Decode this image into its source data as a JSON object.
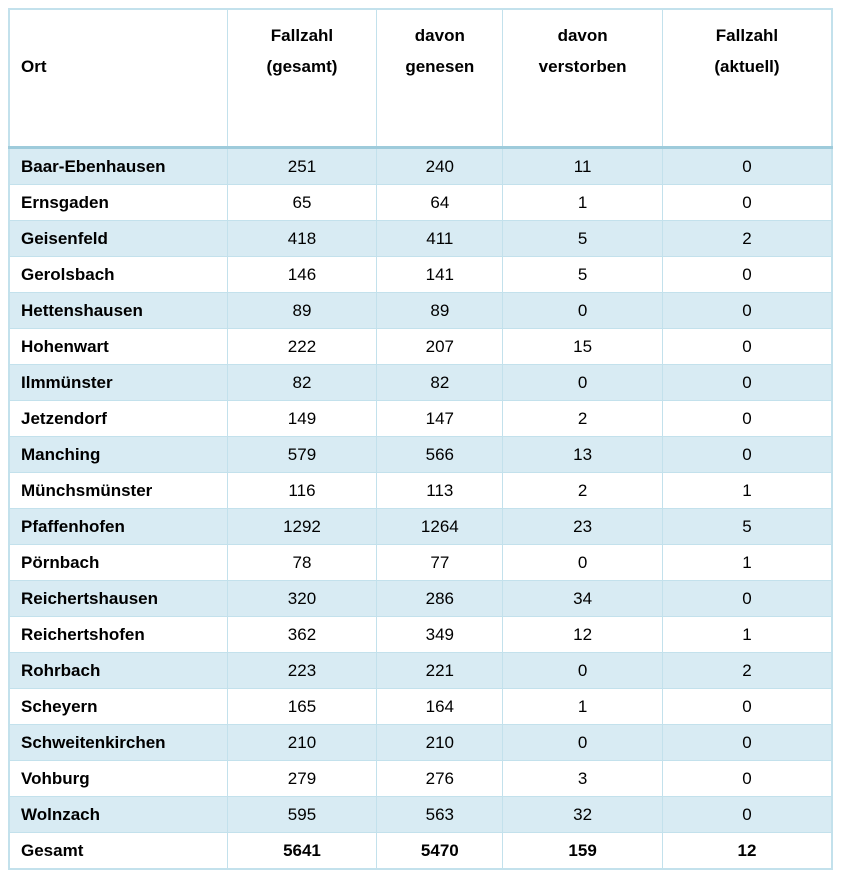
{
  "table": {
    "columns": [
      {
        "id": "ort",
        "label_lines": [
          "Ort",
          ""
        ]
      },
      {
        "id": "gesamt",
        "label_lines": [
          "Fallzahl",
          "(gesamt)"
        ]
      },
      {
        "id": "genesen",
        "label_lines": [
          "davon",
          "genesen"
        ]
      },
      {
        "id": "verstorben",
        "label_lines": [
          "davon",
          "verstorben"
        ]
      },
      {
        "id": "aktuell",
        "label_lines": [
          "Fallzahl",
          "(aktuell)"
        ]
      }
    ],
    "rows": [
      {
        "ort": "Baar-Ebenhausen",
        "gesamt": 251,
        "genesen": 240,
        "verstorben": 11,
        "aktuell": 0
      },
      {
        "ort": "Ernsgaden",
        "gesamt": 65,
        "genesen": 64,
        "verstorben": 1,
        "aktuell": 0
      },
      {
        "ort": "Geisenfeld",
        "gesamt": 418,
        "genesen": 411,
        "verstorben": 5,
        "aktuell": 2
      },
      {
        "ort": "Gerolsbach",
        "gesamt": 146,
        "genesen": 141,
        "verstorben": 5,
        "aktuell": 0
      },
      {
        "ort": "Hettenshausen",
        "gesamt": 89,
        "genesen": 89,
        "verstorben": 0,
        "aktuell": 0
      },
      {
        "ort": "Hohenwart",
        "gesamt": 222,
        "genesen": 207,
        "verstorben": 15,
        "aktuell": 0
      },
      {
        "ort": "Ilmmünster",
        "gesamt": 82,
        "genesen": 82,
        "verstorben": 0,
        "aktuell": 0
      },
      {
        "ort": "Jetzendorf",
        "gesamt": 149,
        "genesen": 147,
        "verstorben": 2,
        "aktuell": 0
      },
      {
        "ort": "Manching",
        "gesamt": 579,
        "genesen": 566,
        "verstorben": 13,
        "aktuell": 0
      },
      {
        "ort": "Münchsmünster",
        "gesamt": 116,
        "genesen": 113,
        "verstorben": 2,
        "aktuell": 1
      },
      {
        "ort": "Pfaffenhofen",
        "gesamt": 1292,
        "genesen": 1264,
        "verstorben": 23,
        "aktuell": 5
      },
      {
        "ort": "Pörnbach",
        "gesamt": 78,
        "genesen": 77,
        "verstorben": 0,
        "aktuell": 1
      },
      {
        "ort": "Reichertshausen",
        "gesamt": 320,
        "genesen": 286,
        "verstorben": 34,
        "aktuell": 0
      },
      {
        "ort": "Reichertshofen",
        "gesamt": 362,
        "genesen": 349,
        "verstorben": 12,
        "aktuell": 1
      },
      {
        "ort": "Rohrbach",
        "gesamt": 223,
        "genesen": 221,
        "verstorben": 0,
        "aktuell": 2
      },
      {
        "ort": "Scheyern",
        "gesamt": 165,
        "genesen": 164,
        "verstorben": 1,
        "aktuell": 0
      },
      {
        "ort": "Schweitenkirchen",
        "gesamt": 210,
        "genesen": 210,
        "verstorben": 0,
        "aktuell": 0
      },
      {
        "ort": "Vohburg",
        "gesamt": 279,
        "genesen": 276,
        "verstorben": 3,
        "aktuell": 0
      },
      {
        "ort": "Wolnzach",
        "gesamt": 595,
        "genesen": 563,
        "verstorben": 32,
        "aktuell": 0
      },
      {
        "ort": "Gesamt",
        "gesamt": 5641,
        "genesen": 5470,
        "verstorben": 159,
        "aktuell": 12,
        "is_total": true
      }
    ],
    "colors": {
      "stripe": "#d8ebf3",
      "border": "#c3e1ec",
      "outer_border": "#b5d8e5",
      "header_separator": "#9ecbdb",
      "text": "#000000"
    }
  }
}
